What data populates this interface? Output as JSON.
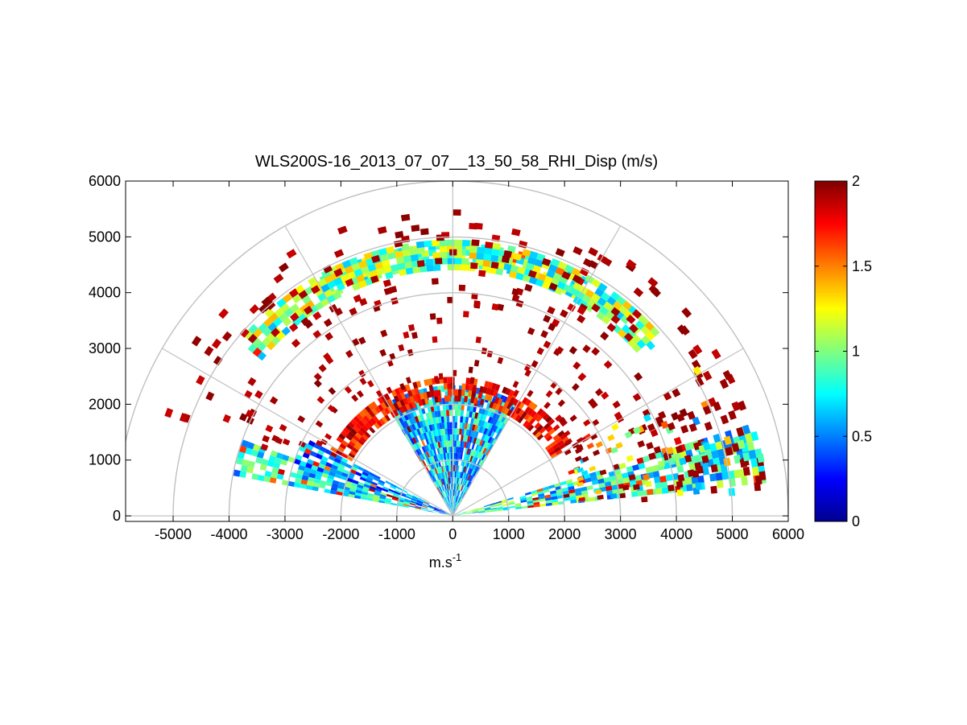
{
  "chart_data": {
    "type": "heatmap",
    "subtype": "polar RHI scan",
    "title": "WLS200S-16_2013_07_07__13_50_58_RHI_Disp (m/s)",
    "xlabel": "m.s",
    "xlabel_superscript": "-1",
    "ylabel": "",
    "xlim": [
      -5850,
      6000
    ],
    "ylim": [
      -100,
      6000
    ],
    "xticks": [
      "-5000",
      "-4000",
      "-3000",
      "-2000",
      "-1000",
      "0",
      "1000",
      "2000",
      "3000",
      "4000",
      "5000",
      "6000"
    ],
    "yticks": [
      "0",
      "1000",
      "2000",
      "3000",
      "4000",
      "5000",
      "6000"
    ],
    "polar_grid": {
      "range_rings_m": [
        1000,
        2000,
        3000,
        4000,
        5000,
        6000
      ],
      "spokes_deg": [
        0,
        30,
        60,
        90,
        120,
        150,
        180
      ],
      "color": "#c0c0c0"
    },
    "colorbar": {
      "clim": [
        0,
        2
      ],
      "ticks": [
        "0",
        "0.5",
        "1",
        "1.5",
        "2"
      ],
      "colormap": "jet"
    },
    "sectors": [
      {
        "az_deg": [
          160,
          168
        ],
        "r_m": [
          0,
          3900
        ],
        "value_range": [
          0.4,
          1.1
        ],
        "note": "low-elevation left beam band"
      },
      {
        "az_deg": [
          152,
          160
        ],
        "r_m": [
          0,
          3000
        ],
        "value_range": [
          0.2,
          0.9
        ]
      },
      {
        "az_deg": [
          6,
          16
        ],
        "r_m": [
          0,
          5600
        ],
        "value_range": [
          0.4,
          1.2
        ],
        "note": "low-elevation right beam band"
      },
      {
        "az_deg": [
          60,
          120
        ],
        "r_m": [
          0,
          2300
        ],
        "value_range": [
          0.3,
          1.0
        ],
        "note": "dense central region"
      },
      {
        "az_deg": [
          30,
          150
        ],
        "r_m": [
          2050,
          2450
        ],
        "value_range": [
          1.5,
          2.0
        ],
        "note": "high dispersion arc"
      },
      {
        "az_deg": [
          60,
          120
        ],
        "r_m": [
          4450,
          4850
        ],
        "value_range": [
          0.6,
          1.3
        ],
        "note": "upper arc band"
      },
      {
        "az_deg": [
          40,
          140
        ],
        "r_m": [
          4400,
          4900
        ],
        "value_range": [
          0.6,
          1.4
        ]
      }
    ],
    "max_range_m": 6000
  }
}
